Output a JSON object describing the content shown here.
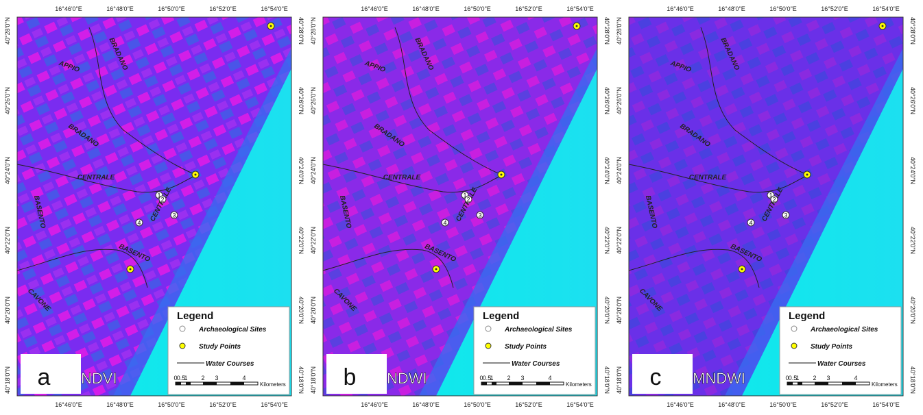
{
  "panels": [
    {
      "letter": "a",
      "index": "NDVI"
    },
    {
      "letter": "b",
      "index": "NDWI"
    },
    {
      "letter": "c",
      "index": "MNDWI"
    }
  ],
  "lon_ticks": [
    "16°46'0\"E",
    "16°48'0\"E",
    "16°50'0\"E",
    "16°52'0\"E",
    "16°54'0\"E"
  ],
  "lat_ticks": [
    "40°28'0\"N",
    "40°26'0\"N",
    "40°24'0\"N",
    "40°22'0\"N",
    "40°20'0\"N",
    "40°18'0\"N"
  ],
  "legend": {
    "title": "Legend",
    "items": [
      "Archaeological Sites",
      "Study Points",
      "Water Courses"
    ]
  },
  "scale": {
    "labels": [
      "0",
      "0.5",
      "1",
      "2",
      "3",
      "4"
    ],
    "unit": "Kilometers"
  },
  "place_names": [
    "BRADANO",
    "APPIO",
    "BRADANO",
    "CENTRALE",
    "BASENTO",
    "CENTRALE",
    "BASENTO",
    "CAVONE"
  ],
  "site_numbers": [
    "1",
    "2",
    "3",
    "4"
  ]
}
